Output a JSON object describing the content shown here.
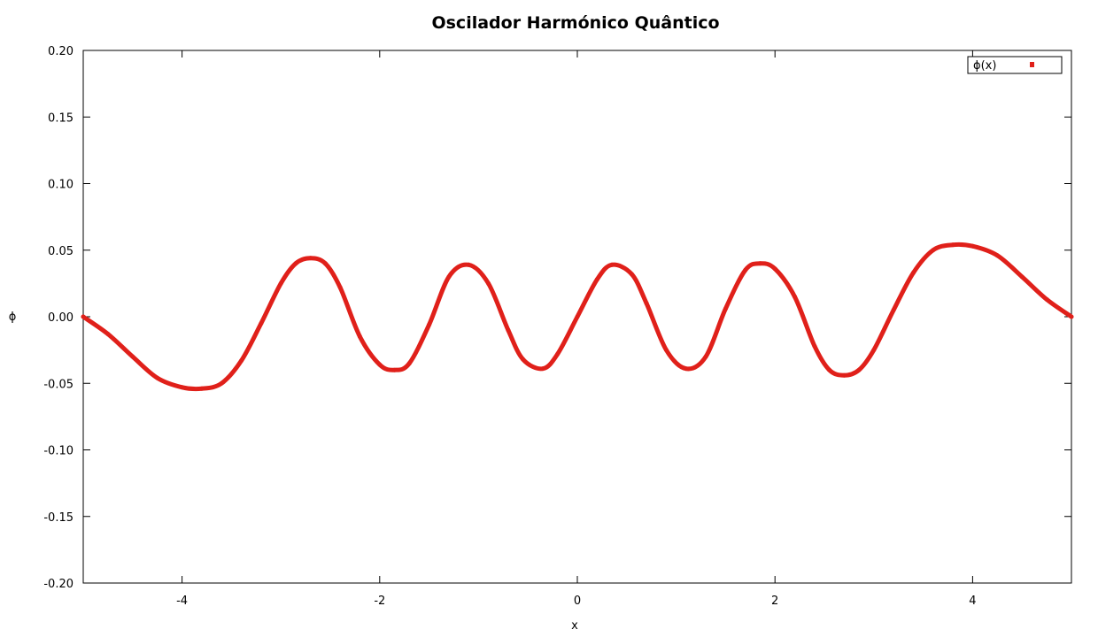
{
  "chart_data": {
    "type": "scatter",
    "title": "Oscilador Harmónico Quântico",
    "xlabel": "x",
    "ylabel": "ϕ",
    "xlim": [
      -5,
      5
    ],
    "ylim": [
      -0.2,
      0.2
    ],
    "xticks": [
      -4,
      -2,
      0,
      2,
      4
    ],
    "xtick_labels": [
      "-4",
      "-2",
      "0",
      "2",
      "4"
    ],
    "yticks": [
      -0.2,
      -0.15,
      -0.1,
      -0.05,
      0,
      0.05,
      0.1,
      0.15,
      0.2
    ],
    "ytick_labels": [
      "-0.20",
      "-0.15",
      "-0.10",
      "-0.05",
      "0.00",
      "0.05",
      "0.10",
      "0.15",
      "0.20"
    ],
    "grid": false,
    "legend_position": "top-right",
    "colors": {
      "series": "#e0201a"
    },
    "series": [
      {
        "name": "ϕ(x)",
        "x": [
          -5.0,
          -4.75,
          -4.5,
          -4.25,
          -4.0,
          -3.8,
          -3.6,
          -3.4,
          -3.2,
          -3.0,
          -2.85,
          -2.7,
          -2.55,
          -2.4,
          -2.2,
          -2.0,
          -1.85,
          -1.7,
          -1.5,
          -1.3,
          -1.1,
          -0.9,
          -0.7,
          -0.55,
          -0.35,
          -0.2,
          0.0,
          0.2,
          0.35,
          0.55,
          0.7,
          0.9,
          1.1,
          1.3,
          1.5,
          1.7,
          1.85,
          2.0,
          2.2,
          2.4,
          2.55,
          2.7,
          2.85,
          3.0,
          3.2,
          3.4,
          3.6,
          3.8,
          4.0,
          4.25,
          4.5,
          4.75,
          5.0
        ],
        "y": [
          0.0,
          -0.013,
          -0.03,
          -0.046,
          -0.053,
          -0.054,
          -0.05,
          -0.033,
          -0.005,
          0.025,
          0.04,
          0.044,
          0.04,
          0.022,
          -0.015,
          -0.036,
          -0.04,
          -0.035,
          -0.006,
          0.03,
          0.039,
          0.025,
          -0.01,
          -0.032,
          -0.039,
          -0.028,
          0.0,
          0.028,
          0.039,
          0.032,
          0.01,
          -0.025,
          -0.039,
          -0.03,
          0.006,
          0.035,
          0.04,
          0.036,
          0.015,
          -0.022,
          -0.04,
          -0.044,
          -0.04,
          -0.025,
          0.005,
          0.033,
          0.05,
          0.054,
          0.053,
          0.046,
          0.03,
          0.013,
          0.0
        ]
      }
    ]
  }
}
